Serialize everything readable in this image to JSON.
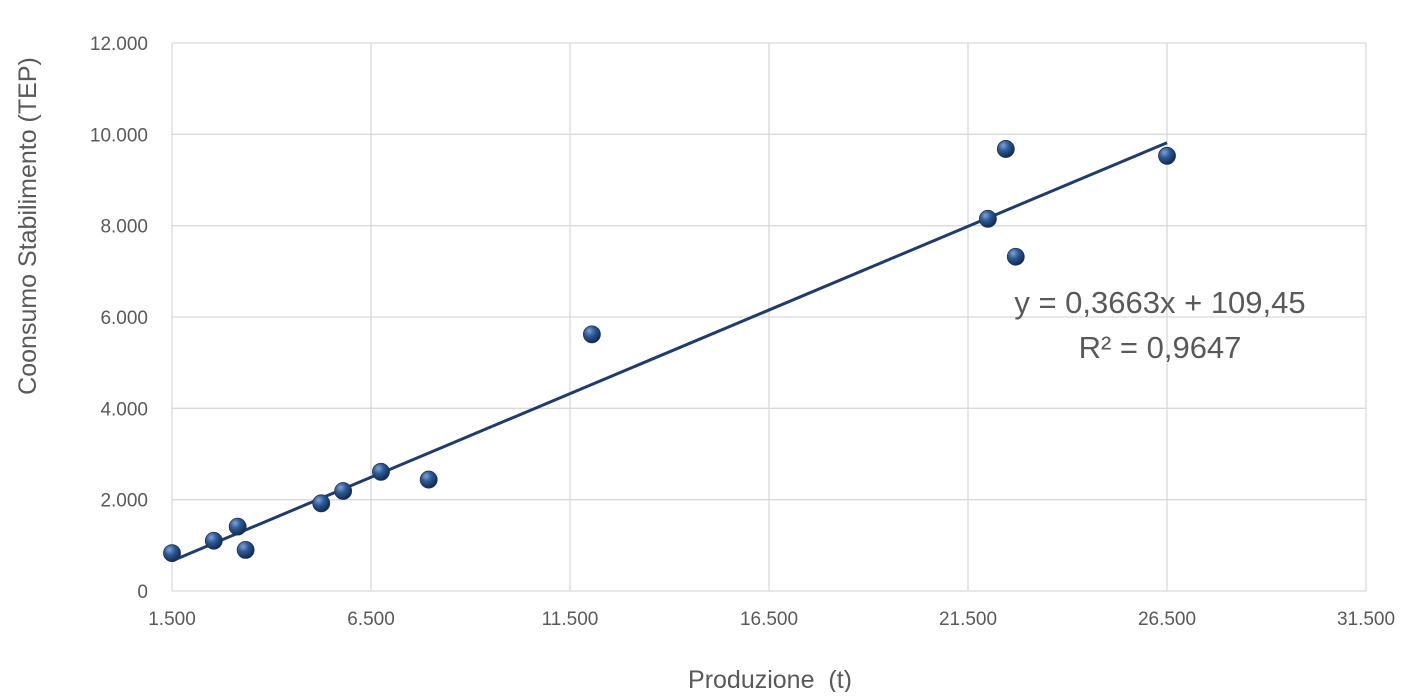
{
  "chart_data": {
    "type": "scatter",
    "title": "",
    "xlabel": "Produzione  (t)",
    "ylabel": "Coonsumo Stabilimento (TEP)",
    "xlim": [
      1500,
      31500
    ],
    "ylim": [
      0,
      12000
    ],
    "x_ticks": [
      1500,
      6500,
      11500,
      16500,
      21500,
      26500,
      31500
    ],
    "x_tick_labels": [
      "1.500",
      "6.500",
      "11.500",
      "16.500",
      "21.500",
      "26.500",
      "31.500"
    ],
    "y_ticks": [
      0,
      2000,
      4000,
      6000,
      8000,
      10000,
      12000
    ],
    "y_tick_labels": [
      "0",
      "2.000",
      "4.000",
      "6.000",
      "8.000",
      "10.000",
      "12.000"
    ],
    "grid": true,
    "legend": "none",
    "series": [
      {
        "points": [
          {
            "x": 1500,
            "y": 830
          },
          {
            "x": 2550,
            "y": 1100
          },
          {
            "x": 3150,
            "y": 1410
          },
          {
            "x": 3350,
            "y": 900
          },
          {
            "x": 5250,
            "y": 1920
          },
          {
            "x": 5800,
            "y": 2190
          },
          {
            "x": 6750,
            "y": 2610
          },
          {
            "x": 7950,
            "y": 2440
          },
          {
            "x": 12050,
            "y": 5620
          },
          {
            "x": 22000,
            "y": 8150
          },
          {
            "x": 22450,
            "y": 9680
          },
          {
            "x": 22700,
            "y": 7320
          },
          {
            "x": 26500,
            "y": 9530
          }
        ]
      }
    ],
    "trendline": {
      "slope": 0.3663,
      "intercept": 109.45,
      "x_start": 1500,
      "x_end": 26500
    },
    "annotations": [
      "y = 0,3663x + 109,45",
      "R² = 0,9647"
    ],
    "colors": {
      "marker": "#264A7E",
      "trendline": "#1F3D6C",
      "grid": "#D9D9D9",
      "text": "#595959"
    }
  }
}
